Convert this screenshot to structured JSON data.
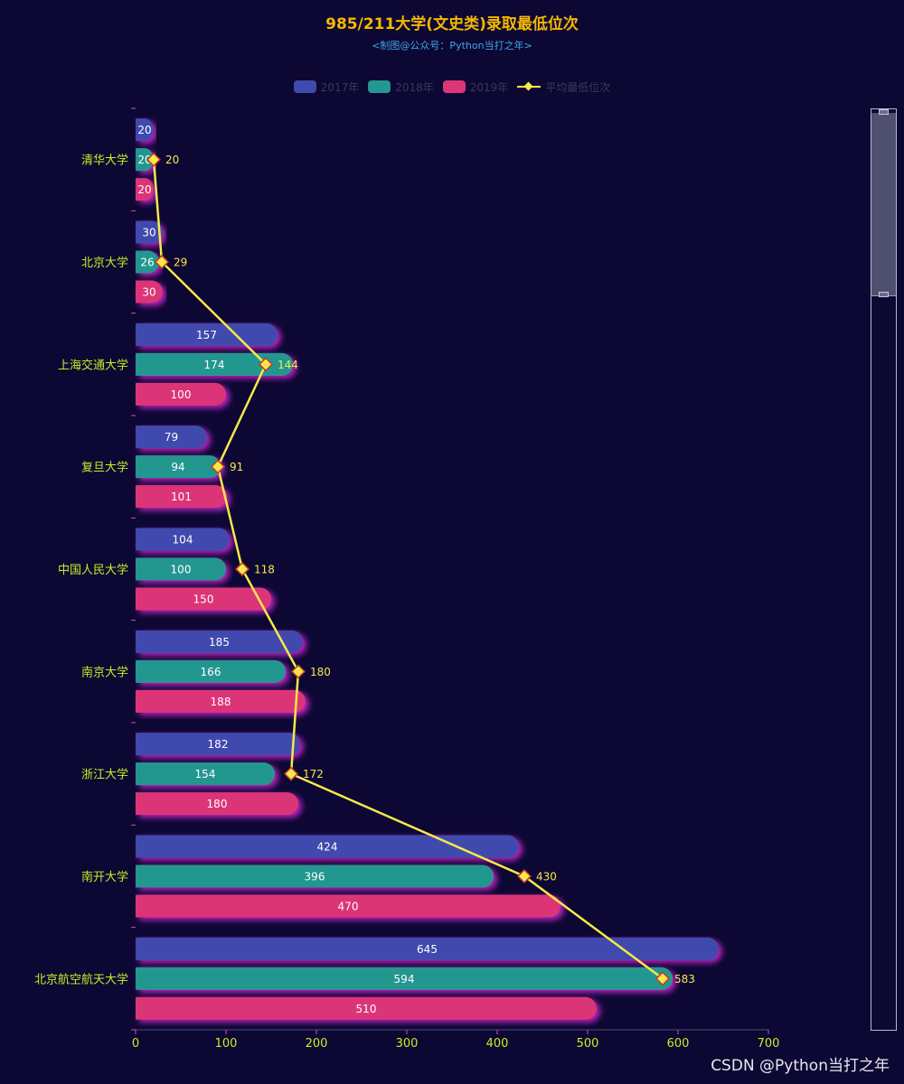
{
  "chart_data": {
    "type": "bar",
    "orientation": "horizontal",
    "title": "985/211大学(文史类)录取最低位次",
    "subtitle": "<制图@公众号：Python当打之年>",
    "categories": [
      "清华大学",
      "北京大学",
      "上海交通大学",
      "复旦大学",
      "中国人民大学",
      "南京大学",
      "浙江大学",
      "南开大学",
      "北京航空航天大学"
    ],
    "series": [
      {
        "name": "2017年",
        "type": "bar",
        "color": "#3f4aad",
        "values": [
          20,
          30,
          157,
          79,
          104,
          185,
          182,
          424,
          645
        ]
      },
      {
        "name": "2018年",
        "type": "bar",
        "color": "#249790",
        "values": [
          20,
          26,
          174,
          94,
          100,
          166,
          154,
          396,
          594
        ]
      },
      {
        "name": "2019年",
        "type": "bar",
        "color": "#dc3677",
        "values": [
          20,
          30,
          100,
          101,
          150,
          188,
          180,
          470,
          510
        ]
      },
      {
        "name": "平均最低位次",
        "type": "line",
        "color": "#f7e84a",
        "values": [
          20,
          29,
          144,
          91,
          118,
          180,
          172,
          430,
          583
        ]
      }
    ],
    "xlim": [
      0,
      700
    ],
    "xticks": [
      0,
      100,
      200,
      300,
      400,
      500,
      600,
      700
    ],
    "legend_position": "top-center",
    "grid": false
  },
  "colors": {
    "background": "#0c0733",
    "title": "#f5b800",
    "subtitle": "#3fa7e8",
    "axis_label": "#c6ee25",
    "line_marker_fill": "#f7e84a",
    "line_marker_border": "#c0392b",
    "legend_text": "#3a3a55"
  },
  "watermark": "CSDN @Python当打之年"
}
